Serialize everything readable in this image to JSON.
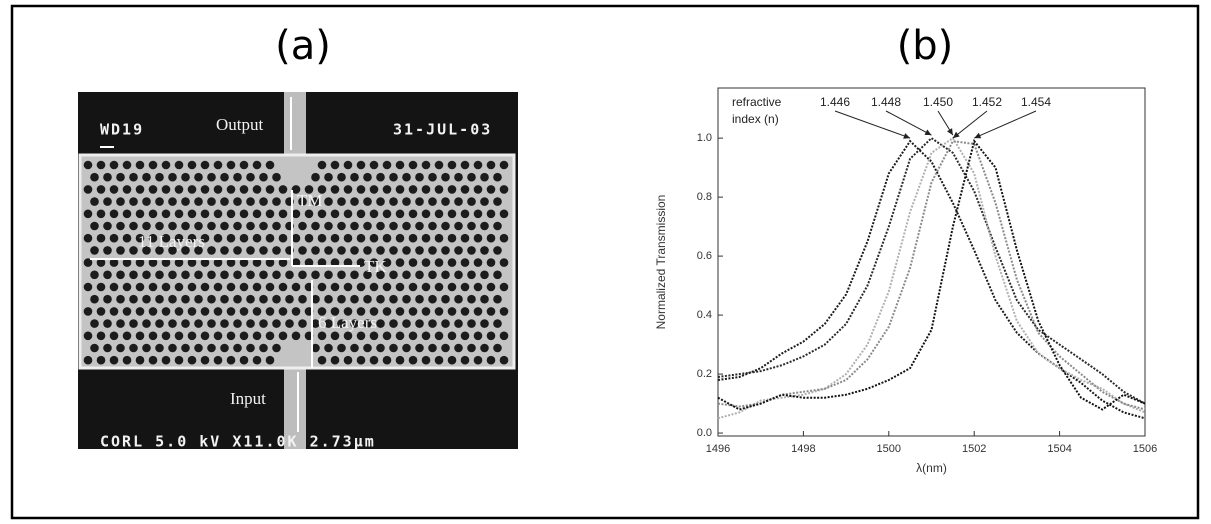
{
  "panel_a": {
    "label": "(a)",
    "image_texts": {
      "sample_id": "WD19",
      "output": "Output",
      "date": "31-JUL-03",
      "tm": "TM",
      "tk": "TK",
      "layers_11": "11 Layers",
      "layers_6": "6 Layers",
      "input": "Input",
      "footer": "CORL  5.0 kV  X11.0K  2.73µm"
    }
  },
  "panel_b": {
    "label": "(b)",
    "chart_data": {
      "type": "line",
      "xlabel": "λ(nm)",
      "ylabel": "Normalized Transmission",
      "annotation": [
        "refractive",
        "index (n)"
      ],
      "xlim": [
        1496,
        1506
      ],
      "ylim": [
        -0.01,
        1.17
      ],
      "xticks": [
        1496,
        1498,
        1500,
        1502,
        1504,
        1506
      ],
      "yticks": [
        {
          "value": 0,
          "label": "0.0"
        },
        0.2,
        0.4,
        0.6,
        0.8,
        {
          "value": 1,
          "label": "1.0"
        }
      ],
      "x": [
        1496,
        1496.5,
        1497,
        1497.5,
        1498,
        1498.5,
        1499,
        1499.5,
        1500,
        1500.5,
        1501,
        1501.5,
        1502,
        1502.5,
        1503,
        1503.5,
        1504,
        1504.5,
        1505,
        1505.5,
        1506
      ],
      "series": [
        {
          "name": "1.446",
          "color": "#1a1a1a",
          "values": [
            0.18,
            0.19,
            0.22,
            0.27,
            0.31,
            0.37,
            0.47,
            0.65,
            0.88,
            0.99,
            0.92,
            0.78,
            0.62,
            0.45,
            0.34,
            0.27,
            0.22,
            0.17,
            0.11,
            0.07,
            0.05
          ]
        },
        {
          "name": "1.448",
          "color": "#2a2a2a",
          "values": [
            0.19,
            0.2,
            0.21,
            0.23,
            0.26,
            0.3,
            0.37,
            0.5,
            0.7,
            0.93,
            1.0,
            0.95,
            0.82,
            0.63,
            0.45,
            0.35,
            0.3,
            0.25,
            0.2,
            0.14,
            0.1
          ]
        },
        {
          "name": "1.450",
          "color": "#b0b0b0",
          "values": [
            0.05,
            0.07,
            0.11,
            0.12,
            0.13,
            0.15,
            0.2,
            0.3,
            0.48,
            0.75,
            0.95,
            1.0,
            0.88,
            0.6,
            0.38,
            0.27,
            0.22,
            0.18,
            0.15,
            0.1,
            0.07
          ]
        },
        {
          "name": "1.452",
          "color": "#8a8a8a",
          "values": [
            0.1,
            0.09,
            0.1,
            0.13,
            0.14,
            0.15,
            0.18,
            0.25,
            0.36,
            0.56,
            0.85,
            0.99,
            0.98,
            0.78,
            0.52,
            0.34,
            0.26,
            0.2,
            0.14,
            0.1,
            0.08
          ]
        },
        {
          "name": "1.454",
          "color": "#111111",
          "values": [
            0.12,
            0.08,
            0.1,
            0.13,
            0.12,
            0.12,
            0.13,
            0.15,
            0.18,
            0.22,
            0.35,
            0.7,
            0.99,
            0.9,
            0.62,
            0.38,
            0.23,
            0.12,
            0.08,
            0.13,
            0.1
          ]
        }
      ]
    }
  }
}
